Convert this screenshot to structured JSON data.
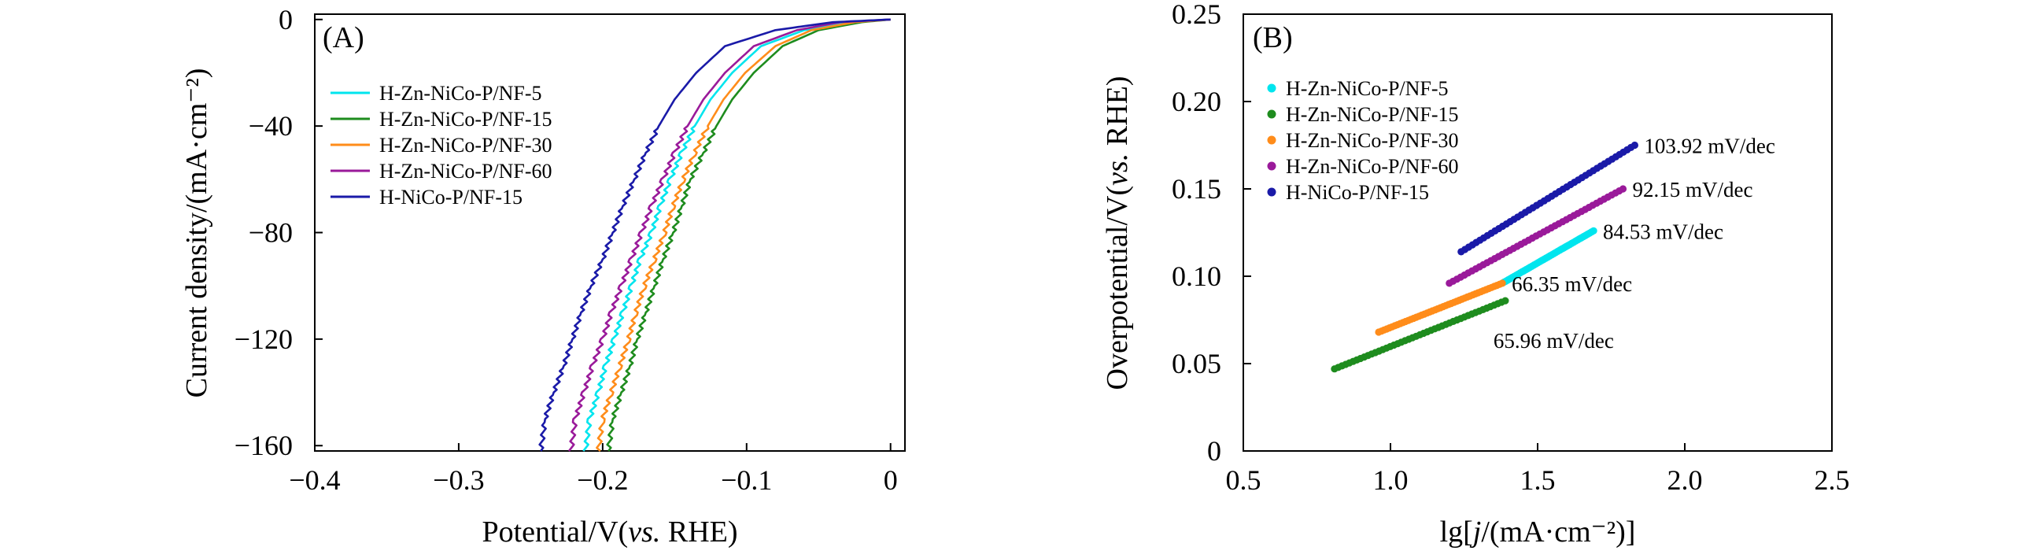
{
  "colors": {
    "cyan": "#00e5ee",
    "green": "#1e8c1e",
    "orange": "#ff8c1a",
    "purple": "#9a1a9a",
    "blue": "#1a1aa8"
  },
  "chart_data": [
    {
      "type": "line",
      "panel_label": "(A)",
      "xlabel": {
        "main": "Potential/V(",
        "italic": "vs.",
        "tail": " RHE)"
      },
      "ylabel": "Current density/(mA·cm⁻²)",
      "xlim": [
        -0.4,
        0.01
      ],
      "ylim": [
        -162,
        2
      ],
      "x_ticks": [
        -0.4,
        -0.3,
        -0.2,
        -0.1,
        0
      ],
      "x_tick_labels": [
        "−0.4",
        "−0.3",
        "−0.2",
        "−0.1",
        "0"
      ],
      "y_ticks": [
        0,
        -40,
        -80,
        -120,
        -160
      ],
      "y_tick_labels": [
        "0",
        "−40",
        "−80",
        "−120",
        "−160"
      ],
      "legend_position": "top-left",
      "series": [
        {
          "name": "H-Zn-NiCo-P/NF-5",
          "color": "cyan",
          "points": [
            [
              -0.212,
              -162
            ],
            [
              -0.209,
              -150
            ],
            [
              -0.203,
              -140
            ],
            [
              -0.198,
              -130
            ],
            [
              -0.192,
              -120
            ],
            [
              -0.186,
              -110
            ],
            [
              -0.18,
              -100
            ],
            [
              -0.174,
              -90
            ],
            [
              -0.166,
              -80
            ],
            [
              -0.16,
              -70
            ],
            [
              -0.153,
              -60
            ],
            [
              -0.145,
              -50
            ],
            [
              -0.136,
              -40
            ],
            [
              -0.125,
              -30
            ],
            [
              -0.11,
              -20
            ],
            [
              -0.09,
              -10
            ],
            [
              -0.06,
              -4
            ],
            [
              -0.03,
              -1
            ],
            [
              0.0,
              0
            ]
          ]
        },
        {
          "name": "H-Zn-NiCo-P/NF-15",
          "color": "green",
          "points": [
            [
              -0.196,
              -162
            ],
            [
              -0.193,
              -150
            ],
            [
              -0.187,
              -140
            ],
            [
              -0.181,
              -130
            ],
            [
              -0.176,
              -120
            ],
            [
              -0.17,
              -110
            ],
            [
              -0.164,
              -100
            ],
            [
              -0.158,
              -90
            ],
            [
              -0.151,
              -80
            ],
            [
              -0.145,
              -70
            ],
            [
              -0.139,
              -60
            ],
            [
              -0.13,
              -50
            ],
            [
              -0.121,
              -40
            ],
            [
              -0.11,
              -30
            ],
            [
              -0.095,
              -20
            ],
            [
              -0.075,
              -10
            ],
            [
              -0.05,
              -4
            ],
            [
              -0.02,
              -1
            ],
            [
              0.0,
              0
            ]
          ]
        },
        {
          "name": "H-Zn-NiCo-P/NF-30",
          "color": "orange",
          "points": [
            [
              -0.203,
              -162
            ],
            [
              -0.2,
              -150
            ],
            [
              -0.194,
              -140
            ],
            [
              -0.188,
              -130
            ],
            [
              -0.182,
              -120
            ],
            [
              -0.177,
              -110
            ],
            [
              -0.171,
              -100
            ],
            [
              -0.164,
              -90
            ],
            [
              -0.157,
              -80
            ],
            [
              -0.151,
              -70
            ],
            [
              -0.144,
              -60
            ],
            [
              -0.136,
              -50
            ],
            [
              -0.127,
              -40
            ],
            [
              -0.116,
              -30
            ],
            [
              -0.101,
              -20
            ],
            [
              -0.08,
              -10
            ],
            [
              -0.055,
              -4
            ],
            [
              -0.025,
              -1
            ],
            [
              0.0,
              0
            ]
          ]
        },
        {
          "name": "H-Zn-NiCo-P/NF-60",
          "color": "purple",
          "points": [
            [
              -0.222,
              -162
            ],
            [
              -0.219,
              -150
            ],
            [
              -0.213,
              -140
            ],
            [
              -0.207,
              -130
            ],
            [
              -0.2,
              -120
            ],
            [
              -0.194,
              -110
            ],
            [
              -0.187,
              -100
            ],
            [
              -0.18,
              -90
            ],
            [
              -0.173,
              -80
            ],
            [
              -0.166,
              -70
            ],
            [
              -0.158,
              -60
            ],
            [
              -0.15,
              -50
            ],
            [
              -0.141,
              -40
            ],
            [
              -0.13,
              -30
            ],
            [
              -0.115,
              -20
            ],
            [
              -0.095,
              -10
            ],
            [
              -0.065,
              -4
            ],
            [
              -0.035,
              -1
            ],
            [
              0.0,
              0
            ]
          ]
        },
        {
          "name": "H-NiCo-P/NF-15",
          "color": "blue",
          "points": [
            [
              -0.243,
              -162
            ],
            [
              -0.24,
              -150
            ],
            [
              -0.234,
              -140
            ],
            [
              -0.227,
              -130
            ],
            [
              -0.221,
              -120
            ],
            [
              -0.215,
              -110
            ],
            [
              -0.208,
              -100
            ],
            [
              -0.2,
              -90
            ],
            [
              -0.193,
              -80
            ],
            [
              -0.186,
              -70
            ],
            [
              -0.178,
              -60
            ],
            [
              -0.17,
              -50
            ],
            [
              -0.161,
              -40
            ],
            [
              -0.15,
              -30
            ],
            [
              -0.135,
              -20
            ],
            [
              -0.115,
              -10
            ],
            [
              -0.08,
              -4
            ],
            [
              -0.04,
              -1
            ],
            [
              0.0,
              0
            ]
          ]
        }
      ]
    },
    {
      "type": "scatter",
      "panel_label": "(B)",
      "xlabel": {
        "main": "lg[",
        "italic": "j",
        "tail": "/(mA·cm⁻²)]"
      },
      "ylabel": {
        "main": "Overpotential/V(",
        "italic": "vs.",
        "tail": " RHE)"
      },
      "xlim": [
        0.5,
        2.5
      ],
      "ylim": [
        0,
        0.25
      ],
      "x_ticks": [
        0.5,
        1.0,
        1.5,
        2.0,
        2.5
      ],
      "x_tick_labels": [
        "0.5",
        "1.0",
        "1.5",
        "2.0",
        "2.5"
      ],
      "y_ticks": [
        0,
        0.05,
        0.1,
        0.15,
        0.2,
        0.25
      ],
      "y_tick_labels": [
        "0",
        "0.05",
        "0.10",
        "0.15",
        "0.20",
        "0.25"
      ],
      "legend_position": "top-left",
      "series": [
        {
          "name": "H-Zn-NiCo-P/NF-5",
          "color": "cyan",
          "x_range": [
            1.38,
            1.69
          ],
          "y_range": [
            0.096,
            0.126
          ],
          "slope_label": "84.53 mV/dec"
        },
        {
          "name": "H-Zn-NiCo-P/NF-15",
          "color": "green",
          "x_range": [
            0.81,
            1.39
          ],
          "y_range": [
            0.047,
            0.086
          ],
          "slope_label": "65.96 mV/dec"
        },
        {
          "name": "H-Zn-NiCo-P/NF-30",
          "color": "orange",
          "x_range": [
            0.96,
            1.38
          ],
          "y_range": [
            0.068,
            0.096
          ],
          "slope_label": "66.35 mV/dec"
        },
        {
          "name": "H-Zn-NiCo-P/NF-60",
          "color": "purple",
          "x_range": [
            1.2,
            1.79
          ],
          "y_range": [
            0.096,
            0.15
          ],
          "slope_label": "92.15 mV/dec"
        },
        {
          "name": "H-NiCo-P/NF-15",
          "color": "blue",
          "x_range": [
            1.24,
            1.83
          ],
          "y_range": [
            0.114,
            0.175
          ],
          "slope_label": "103.92 mV/dec"
        }
      ]
    }
  ]
}
